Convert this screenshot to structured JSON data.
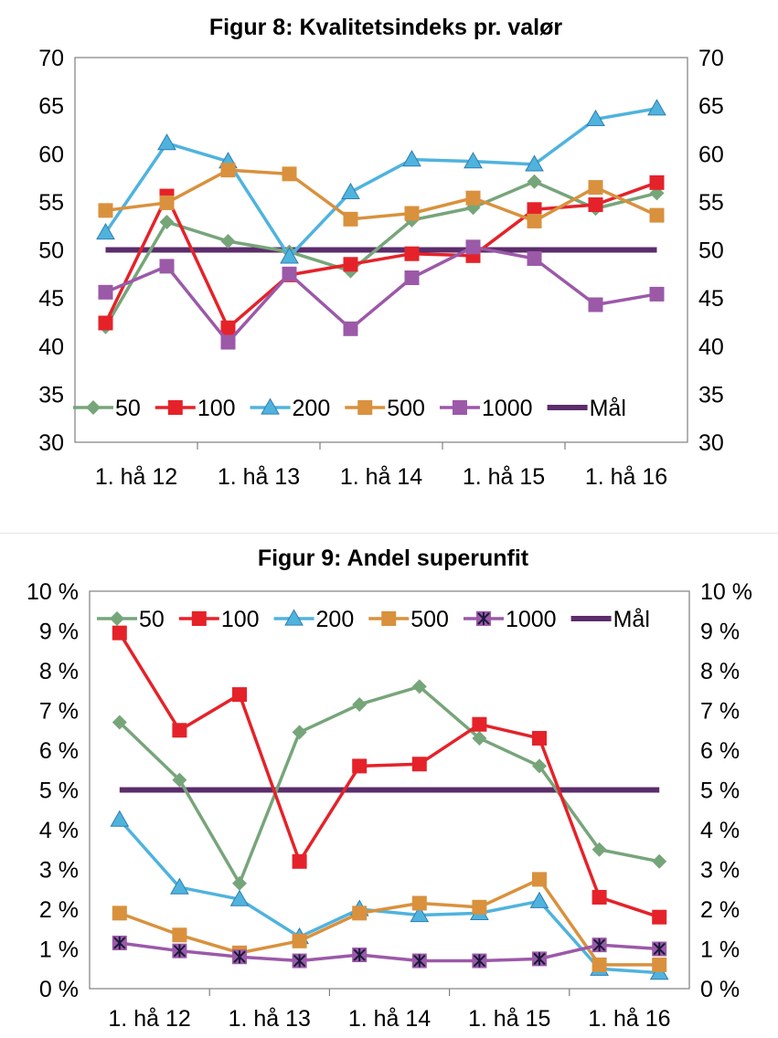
{
  "chart_data": [
    {
      "type": "line",
      "title": "Figur 8: Kvalitetsindeks pr. valør",
      "categories": [
        "",
        "1. hå 12",
        "",
        "1. hå 13",
        "",
        "1. hå 14",
        "",
        "1. hå 15",
        "",
        "1. hå 16"
      ],
      "x_tick_labels": [
        "1. hå 12",
        "1. hå 13",
        "1. hå 14",
        "1. hå 15",
        "1. hå 16"
      ],
      "ylim": [
        30,
        70
      ],
      "yticks": [
        30,
        35,
        40,
        45,
        50,
        55,
        60,
        65,
        70
      ],
      "ytick_labels": [
        "30",
        "35",
        "40",
        "45",
        "50",
        "55",
        "60",
        "65",
        "70"
      ],
      "secondary_axis": true,
      "legend_position": "inside-bottom",
      "grid": false,
      "series": [
        {
          "name": "50",
          "color": "#77a57a",
          "marker": "diamond",
          "values": [
            42.0,
            52.9,
            50.9,
            49.8,
            47.8,
            53.1,
            54.4,
            57.1,
            54.3,
            55.9
          ]
        },
        {
          "name": "100",
          "color": "#e52229",
          "marker": "square",
          "values": [
            42.4,
            55.6,
            41.9,
            47.4,
            48.5,
            49.6,
            49.4,
            54.2,
            54.7,
            57.0
          ]
        },
        {
          "name": "200",
          "color": "#4fb3de",
          "marker": "triangle",
          "values": [
            51.8,
            61.1,
            59.2,
            49.3,
            56.0,
            59.4,
            59.2,
            58.9,
            63.6,
            64.7
          ]
        },
        {
          "name": "500",
          "color": "#d9913d",
          "marker": "square",
          "values": [
            54.1,
            54.9,
            58.3,
            57.9,
            53.2,
            53.8,
            55.4,
            53.0,
            56.5,
            53.6
          ]
        },
        {
          "name": "1000",
          "color": "#9b59a8",
          "marker": "square",
          "values": [
            45.6,
            48.3,
            40.4,
            47.5,
            41.8,
            47.1,
            50.3,
            49.1,
            44.3,
            45.4
          ]
        },
        {
          "name": "Mål",
          "color": "#5b2d6b",
          "marker": "none",
          "values": [
            50,
            50,
            50,
            50,
            50,
            50,
            50,
            50,
            50,
            50
          ]
        }
      ]
    },
    {
      "type": "line",
      "title": "Figur 9: Andel superunfit",
      "categories": [
        "",
        "1. hå 12",
        "",
        "1. hå 13",
        "",
        "1. hå 14",
        "",
        "1. hå 15",
        "",
        "1. hå 16"
      ],
      "x_tick_labels": [
        "1. hå 12",
        "1. hå 13",
        "1. hå 14",
        "1. hå 15",
        "1. hå 16"
      ],
      "ylim": [
        0,
        10
      ],
      "yticks": [
        0,
        1,
        2,
        3,
        4,
        5,
        6,
        7,
        8,
        9,
        10
      ],
      "ytick_labels": [
        "0 %",
        "1 %",
        "2 %",
        "3 %",
        "4 %",
        "5 %",
        "6 %",
        "7 %",
        "8 %",
        "9 %",
        "10 %"
      ],
      "unit": "%",
      "secondary_axis": true,
      "legend_position": "inside-top",
      "grid": false,
      "series": [
        {
          "name": "50",
          "color": "#77a57a",
          "marker": "diamond",
          "values": [
            6.7,
            5.25,
            2.65,
            6.45,
            7.15,
            7.6,
            6.3,
            5.6,
            3.5,
            3.2
          ]
        },
        {
          "name": "100",
          "color": "#e52229",
          "marker": "square",
          "values": [
            8.95,
            6.5,
            7.4,
            3.2,
            5.6,
            5.65,
            6.65,
            6.3,
            2.3,
            1.8
          ]
        },
        {
          "name": "200",
          "color": "#4fb3de",
          "marker": "triangle",
          "values": [
            4.25,
            2.55,
            2.25,
            1.3,
            2.0,
            1.85,
            1.9,
            2.2,
            0.5,
            0.4
          ]
        },
        {
          "name": "500",
          "color": "#d9913d",
          "marker": "square",
          "values": [
            1.9,
            1.35,
            0.9,
            1.2,
            1.9,
            2.15,
            2.05,
            2.75,
            0.6,
            0.6
          ]
        },
        {
          "name": "1000",
          "color": "#9b59a8",
          "marker": "asterisk",
          "values": [
            1.15,
            0.95,
            0.8,
            0.7,
            0.85,
            0.7,
            0.7,
            0.75,
            1.1,
            1.0
          ]
        },
        {
          "name": "Mål",
          "color": "#5b2d6b",
          "marker": "none",
          "values": [
            5,
            5,
            5,
            5,
            5,
            5,
            5,
            5,
            5,
            5
          ]
        }
      ]
    }
  ]
}
